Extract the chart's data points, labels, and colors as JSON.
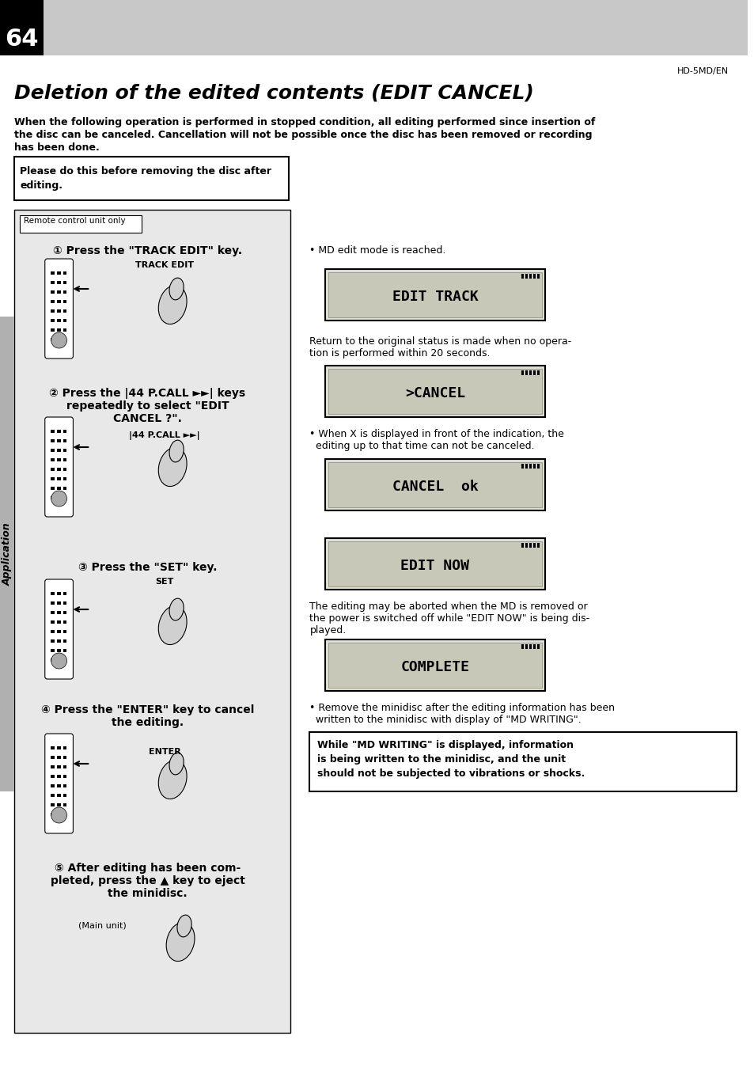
{
  "page_num": "64",
  "top_label": "HD-5MD/EN",
  "title": "Deletion of the edited contents (EDIT CANCEL)",
  "intro_text": "When the following operation is performed in stopped condition, all editing performed since insertion of\nthe disc can be canceled. Cancellation will not be possible once the disc has been removed or recording\nhas been done.",
  "note_box": "Please do this before removing the disc after\nediting.",
  "remote_label": "Remote control unit only",
  "steps": [
    {
      "num": "1",
      "text": "Press the \"TRACK EDIT\" key.",
      "sublabel": "TRACK EDIT"
    },
    {
      "num": "2",
      "text": "Press the ᑌ P.CALL ᑎ keys\nrepeatedly to select \"EDIT\nCANCEL ?\".",
      "sublabel": "|44 P.CALL ►►|"
    },
    {
      "num": "3",
      "text": "Press the \"SET\" key.",
      "sublabel": "SET"
    },
    {
      "num": "4",
      "text": "Press the \"ENTER\" key to cancel\nthe editing.",
      "sublabel": "ENTER"
    },
    {
      "num": "5",
      "text": "After editing has been com-\npleted, press the ▲ key to eject\nthe minidisc.",
      "sublabel": "(Main unit)"
    }
  ],
  "right_bullets": [
    "MD edit mode is reached.",
    "Return to the original status is made when no opera-\ntion is performed within 20 seconds.",
    "When X is displayed in front of the indication, the\nediting up to that time can not be canceled.",
    "The editing may be aborted when the MD is removed or\nthe power is switched off while \"EDIT NOW\" is being dis-\nplayed.",
    "Remove the minidisc after the editing information has been\nwritten to the minidisc with display of \"MD WRITING\"."
  ],
  "displays": [
    "EDIT TRACK",
    ">CANCEL",
    "CANCEL  ok",
    "EDIT NOW",
    "COMPLETE"
  ],
  "bottom_box": "While \"MD WRITING\" is displayed, information\nis being written to the minidisc, and the unit\nshould not be subjected to vibrations or shocks.",
  "sidebar_text": "Application",
  "bg_color": "#ffffff",
  "header_bg": "#c8c8c8",
  "left_panel_bg": "#e8e8e8",
  "sidebar_bg": "#b0b0b0"
}
